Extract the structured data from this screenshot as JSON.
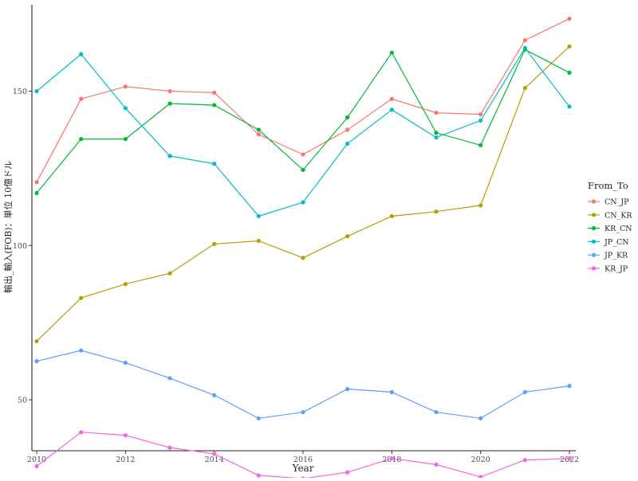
{
  "chart_data": {
    "type": "line",
    "title": "",
    "xlabel": "Year",
    "ylabel": "輸出_輸入(FOB)：単位 10億ドル",
    "x": [
      2010,
      2011,
      2012,
      2013,
      2014,
      2015,
      2016,
      2017,
      2018,
      2019,
      2020,
      2021,
      2022
    ],
    "xlim": [
      2010,
      2022
    ],
    "ylim": [
      33.5,
      178
    ],
    "x_ticks": [
      2010,
      2012,
      2014,
      2016,
      2018,
      2020,
      2022
    ],
    "y_ticks": [
      50,
      100,
      150
    ],
    "grid": false,
    "legend": {
      "title": "From_To",
      "position": "right"
    },
    "series": [
      {
        "name": "CN_JP",
        "color": "#F8766D",
        "values": [
          120.5,
          147.5,
          151.5,
          150.0,
          149.5,
          136.0,
          129.5,
          137.5,
          147.5,
          143.0,
          142.5,
          166.5,
          173.5
        ]
      },
      {
        "name": "CN_KR",
        "color": "#B79F00",
        "values": [
          69.0,
          83.0,
          87.5,
          91.0,
          100.5,
          101.5,
          96.0,
          103.0,
          109.5,
          111.0,
          113.0,
          151.0,
          164.5
        ]
      },
      {
        "name": "KR_CN",
        "color": "#00BA38",
        "values": [
          117.0,
          134.5,
          134.5,
          146.0,
          145.5,
          137.5,
          124.5,
          141.5,
          162.5,
          136.5,
          132.5,
          163.5,
          156.0
        ]
      },
      {
        "name": "JP_CN",
        "color": "#00BFC4",
        "values": [
          150.0,
          162.0,
          144.5,
          129.0,
          126.5,
          109.5,
          114.0,
          133.0,
          144.0,
          135.0,
          140.5,
          164.0,
          145.0
        ]
      },
      {
        "name": "JP_KR",
        "color": "#619CFF",
        "values": [
          62.5,
          66.0,
          62.0,
          57.0,
          51.5,
          44.0,
          46.0,
          53.5,
          52.5,
          46.0,
          44.0,
          52.5,
          54.5
        ]
      },
      {
        "name": "KR_JP",
        "color": "#F564E3",
        "values": [
          28.5,
          39.5,
          38.5,
          34.5,
          32.5,
          25.5,
          24.5,
          26.5,
          31.0,
          29.0,
          25.0,
          30.5,
          31.0
        ]
      }
    ]
  }
}
